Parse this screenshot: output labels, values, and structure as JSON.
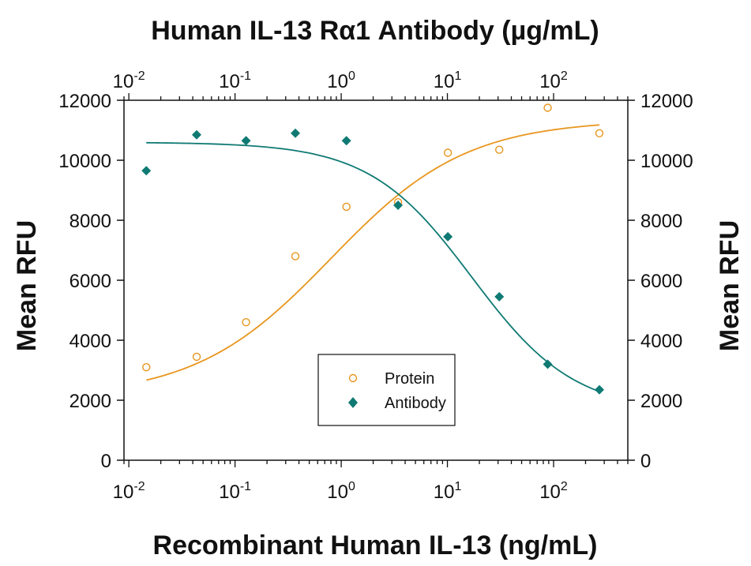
{
  "chart_data": {
    "type": "scatter",
    "title": "Human IL-13 Rα1 Antibody (µg/mL)",
    "xlabel": "Recombinant Human IL-13 (ng/mL)",
    "ylabel_left": "Mean RFU",
    "ylabel_right": "Mean RFU",
    "x_scale": "log",
    "x_tick_labels": [
      "10-2",
      "10-1",
      "100",
      "101",
      "102"
    ],
    "bottom_x_ticks": [
      0.01,
      0.1,
      1,
      10,
      100
    ],
    "top_x_ticks": [
      0.01,
      0.1,
      1,
      10,
      100
    ],
    "bottom_xlim": [
      0.009,
      500
    ],
    "top_xlim": [
      0.009,
      500
    ],
    "ylim": [
      0,
      12000
    ],
    "y_ticks": [
      0,
      2000,
      4000,
      6000,
      8000,
      10000,
      12000
    ],
    "grid": false,
    "legend_placement": "bottom-center",
    "series": [
      {
        "name": "Protein",
        "axis": "bottom",
        "marker": "open-circle",
        "color": "#E8961E",
        "x": [
          0.0146,
          0.0435,
          0.127,
          0.37,
          1.12,
          3.43,
          10.1,
          30.8,
          88.0,
          270.0
        ],
        "y": [
          3100,
          3450,
          4600,
          6800,
          8450,
          8600,
          10250,
          10350,
          11750,
          10900
        ],
        "fit": {
          "model": "4PL",
          "bottom": 2100,
          "top": 11350,
          "ec50": 0.8,
          "hill": 0.68
        }
      },
      {
        "name": "Antibody",
        "axis": "top",
        "marker": "filled-diamond",
        "color": "#0F7A73",
        "x": [
          0.0146,
          0.0435,
          0.127,
          0.37,
          1.12,
          3.43,
          10.1,
          30.8,
          88.0,
          270.0
        ],
        "y": [
          9650,
          10850,
          10650,
          10900,
          10650,
          8500,
          7450,
          5450,
          3200,
          2350
        ],
        "fit": {
          "model": "4PL",
          "bottom": 1600,
          "top": 10600,
          "ec50": 17.0,
          "hill": 0.9
        }
      }
    ]
  }
}
